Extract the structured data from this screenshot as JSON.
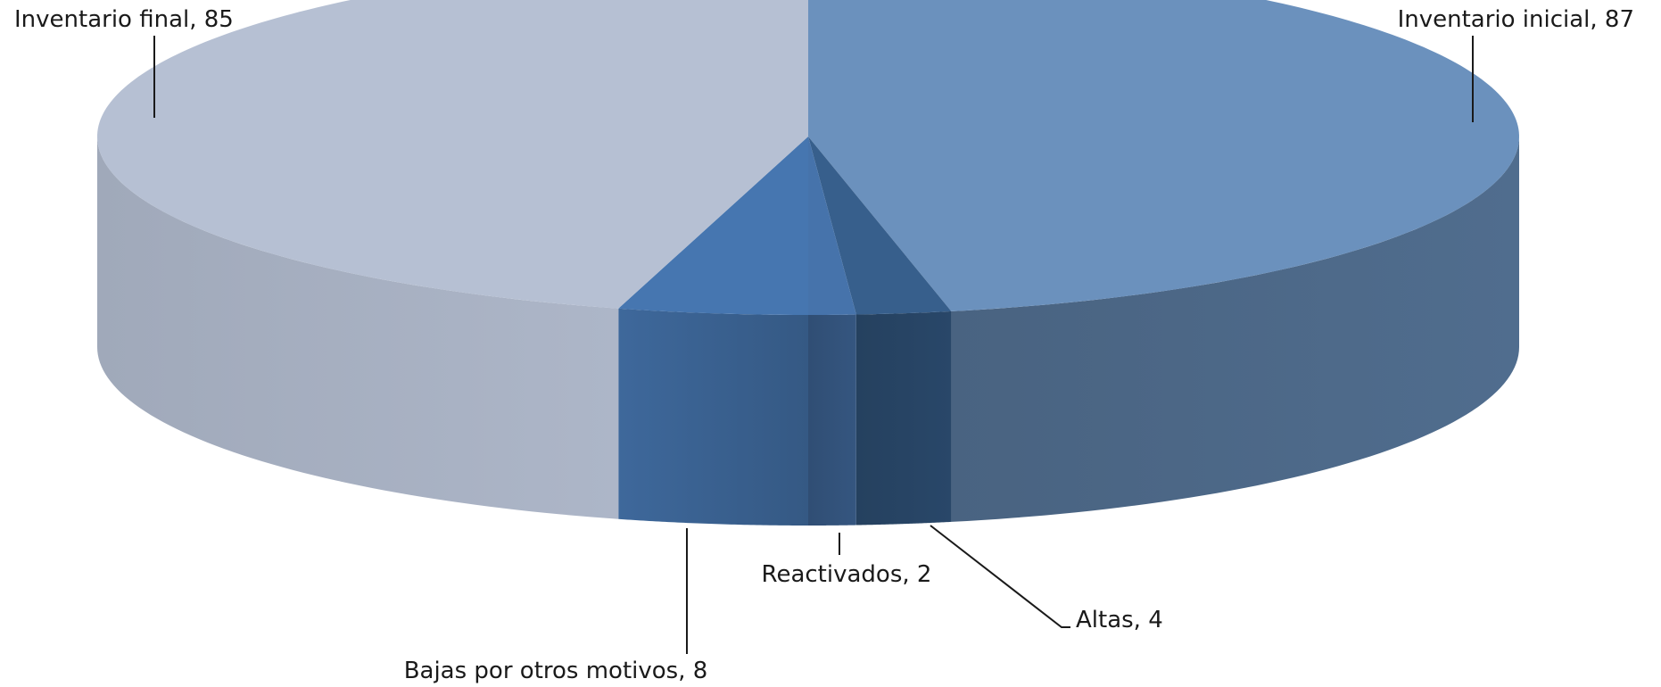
{
  "chart_data": {
    "type": "pie",
    "title": "",
    "three_d": true,
    "slices": [
      {
        "label": "Inventario inicial",
        "value": 87,
        "color": "#6b91bd",
        "label_text": "Inventario inicial, 87"
      },
      {
        "label": "Altas",
        "value": 4,
        "color": "#375f8c",
        "label_text": "Altas, 4"
      },
      {
        "label": "Reactivados",
        "value": 2,
        "color": "#4673ab",
        "label_text": "Reactivados, 2"
      },
      {
        "label": "Bajas por otros motivos",
        "value": 8,
        "color": "#4676b0",
        "label_text": "Bajas por otros motivos, 8"
      },
      {
        "label": "Inventario final",
        "value": 85,
        "color": "#b6c0d3",
        "label_text": "Inventario final, 85"
      }
    ],
    "legend": "none",
    "data_labels": "outside with leader lines"
  }
}
